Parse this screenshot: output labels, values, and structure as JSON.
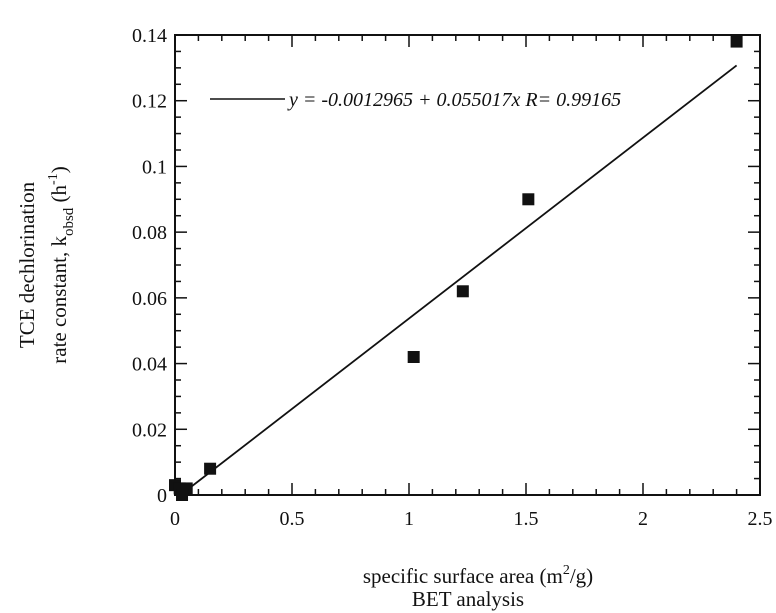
{
  "chart_data": {
    "type": "scatter",
    "x": [
      0.0,
      0.02,
      0.05,
      0.03,
      0.15,
      1.02,
      1.23,
      1.51,
      2.4
    ],
    "y": [
      0.003,
      0.002,
      0.002,
      0.0,
      0.008,
      0.042,
      0.062,
      0.09,
      0.138
    ],
    "xlim": [
      0,
      2.5
    ],
    "ylim": [
      0,
      0.14
    ],
    "x_ticks": [
      "0",
      "0.5",
      "1",
      "1.5",
      "2",
      "2.5"
    ],
    "y_ticks": [
      "0",
      "0.02",
      "0.04",
      "0.06",
      "0.08",
      "0.1",
      "0.12",
      "0.14"
    ],
    "xlabel": [
      "specific surface area (m",
      "2",
      "/g)",
      "BET analysis"
    ],
    "ylabel": [
      "TCE dechlorination",
      "rate constant, k",
      "obsd",
      " (h",
      "-1",
      ")"
    ],
    "fit": {
      "intercept": -0.0012965,
      "slope": 0.055017,
      "x_range": [
        0.02,
        2.4
      ],
      "label": "y = -0.0012965 + 0.055017x R= 0.99165"
    },
    "marker": "square",
    "grid": false,
    "frame": "box-with-inner-ticks"
  }
}
